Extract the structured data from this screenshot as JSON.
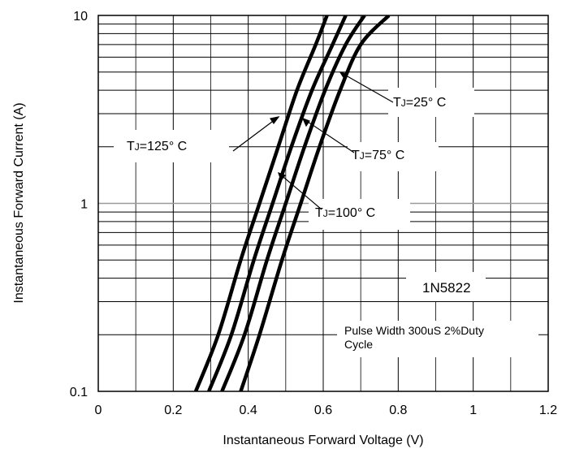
{
  "chart_data": {
    "type": "line",
    "xlabel": "Instantaneous Forward Voltage (V)",
    "ylabel": "Instantaneous Forward Current (A)",
    "xlim": [
      0,
      1.2
    ],
    "ylim": [
      0.1,
      10
    ],
    "yscale": "log",
    "grid": true,
    "x_ticks": [
      "0",
      "0.2",
      "0.4",
      "0.6",
      "0.8",
      "1",
      "1.2"
    ],
    "y_ticks": [
      "0.1",
      "1",
      "10"
    ],
    "series": [
      {
        "name": "TJ=125° C",
        "points": [
          [
            0.26,
            0.1
          ],
          [
            0.32,
            0.2
          ],
          [
            0.38,
            0.5
          ],
          [
            0.43,
            1.0
          ],
          [
            0.48,
            2.0
          ],
          [
            0.53,
            4.0
          ],
          [
            0.58,
            7.0
          ],
          [
            0.61,
            10.0
          ]
        ]
      },
      {
        "name": "TJ=100° C",
        "points": [
          [
            0.295,
            0.1
          ],
          [
            0.355,
            0.2
          ],
          [
            0.415,
            0.5
          ],
          [
            0.465,
            1.0
          ],
          [
            0.515,
            2.0
          ],
          [
            0.57,
            4.0
          ],
          [
            0.625,
            7.0
          ],
          [
            0.66,
            10.0
          ]
        ]
      },
      {
        "name": "TJ=75° C",
        "points": [
          [
            0.33,
            0.1
          ],
          [
            0.39,
            0.2
          ],
          [
            0.45,
            0.5
          ],
          [
            0.5,
            1.0
          ],
          [
            0.55,
            2.0
          ],
          [
            0.605,
            4.0
          ],
          [
            0.66,
            7.0
          ],
          [
            0.71,
            10.0
          ]
        ]
      },
      {
        "name": "TJ=25° C",
        "points": [
          [
            0.38,
            0.1
          ],
          [
            0.43,
            0.2
          ],
          [
            0.49,
            0.5
          ],
          [
            0.54,
            1.0
          ],
          [
            0.59,
            2.0
          ],
          [
            0.645,
            4.0
          ],
          [
            0.7,
            7.0
          ],
          [
            0.775,
            10.0
          ]
        ]
      }
    ],
    "annotations": {
      "tj125": {
        "sub": "J",
        "text": "=125° C"
      },
      "tj100": {
        "sub": "J",
        "text": "=100° C"
      },
      "tj75": {
        "sub": "J",
        "text": "=75° C"
      },
      "tj25": {
        "sub": "J",
        "text": "=25° C"
      },
      "part": "1N5822",
      "pulse_line1": "Pulse Width 300uS 2%Duty",
      "pulse_line2": "Cycle"
    }
  }
}
